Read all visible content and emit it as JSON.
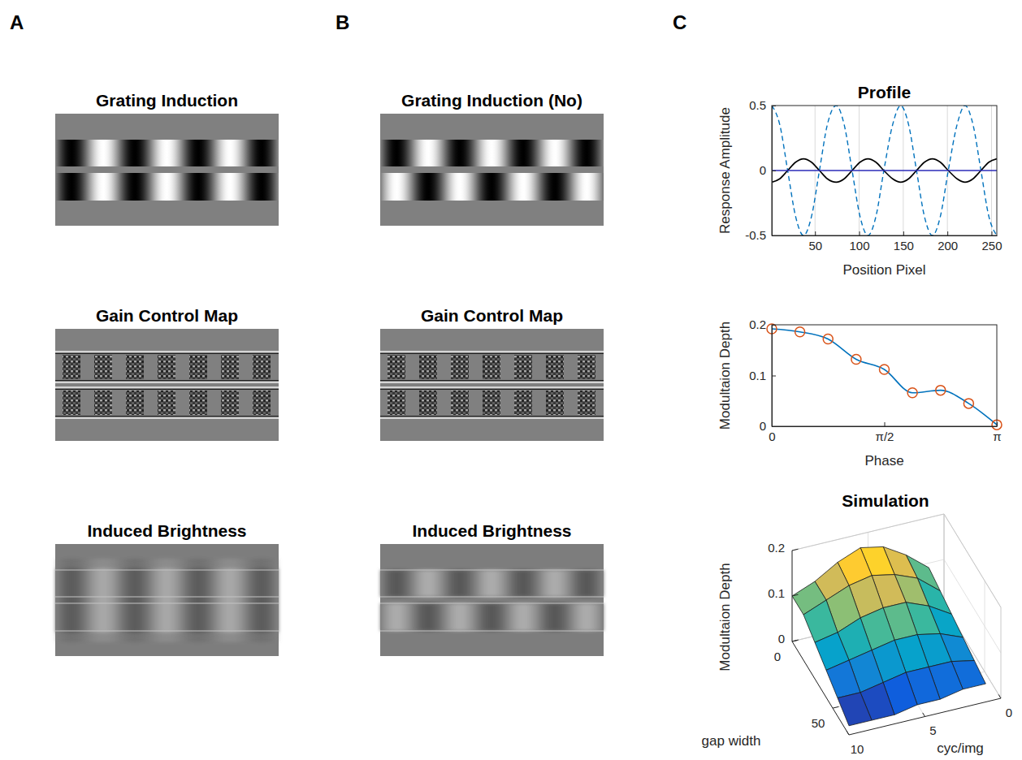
{
  "panels": [
    {
      "label": "A",
      "images": [
        "Grating Induction",
        "Gain Control Map",
        "Induced Brightness"
      ]
    },
    {
      "label": "B",
      "images": [
        "Grating Induction (No)",
        "Gain Control Map",
        "Induced Brightness"
      ]
    },
    {
      "label": "C"
    }
  ],
  "chart_data": [
    {
      "type": "line",
      "title": "Profile",
      "xlabel": "Position Pixel",
      "ylabel": "Response Amplitude",
      "x": [
        1,
        10,
        19,
        28,
        37,
        46,
        55,
        64,
        74,
        83,
        92,
        101,
        110,
        119,
        128,
        138,
        147,
        156,
        165,
        174,
        183,
        192,
        201,
        211,
        220,
        229,
        238,
        247,
        256
      ],
      "series": [
        {
          "color": "#0072bd",
          "line_style": "dashed",
          "values": [
            0.5,
            0.354,
            0,
            -0.354,
            -0.5,
            -0.354,
            0,
            0.354,
            0.5,
            0.354,
            0,
            -0.354,
            -0.5,
            -0.354,
            0,
            0.354,
            0.5,
            0.354,
            0,
            -0.354,
            -0.5,
            -0.354,
            0,
            0.354,
            0.5,
            0.354,
            0,
            -0.354,
            -0.5
          ]
        },
        {
          "color": "#000000",
          "line_style": "solid",
          "values": [
            -0.09,
            -0.064,
            0,
            0.064,
            0.09,
            0.064,
            0,
            -0.064,
            -0.09,
            -0.064,
            0,
            0.064,
            0.09,
            0.064,
            0,
            -0.064,
            -0.09,
            -0.064,
            0,
            0.064,
            0.09,
            0.064,
            0,
            -0.064,
            -0.09,
            -0.064,
            0,
            0.064,
            0.09
          ]
        },
        {
          "color": "#2b2bb8",
          "line_style": "solid",
          "values": [
            0,
            0,
            0,
            0,
            0,
            0,
            0,
            0,
            0,
            0,
            0,
            0,
            0,
            0,
            0,
            0,
            0,
            0,
            0,
            0,
            0,
            0,
            0,
            0,
            0,
            0,
            0,
            0,
            0
          ]
        }
      ],
      "xlim": [
        1,
        256
      ],
      "ylim": [
        -0.5,
        0.5
      ],
      "xticks": [
        50,
        100,
        150,
        200,
        250
      ],
      "yticks": [
        -0.5,
        0,
        0.5
      ],
      "grid": "x"
    },
    {
      "type": "line",
      "xlabel": "Phase",
      "ylabel": "Modultaion Depth",
      "x": [
        0,
        0.3927,
        0.7854,
        1.1781,
        1.5708,
        1.9635,
        2.3562,
        2.7489,
        3.1416
      ],
      "series": [
        {
          "color": "#0072bd",
          "marker": "circle",
          "line_style": "solid",
          "values": [
            0.192,
            0.186,
            0.172,
            0.132,
            0.112,
            0.066,
            0.071,
            0.045,
            0.003
          ]
        }
      ],
      "xlim": [
        0,
        3.1416
      ],
      "ylim": [
        0,
        0.2
      ],
      "xticks": [
        0,
        {
          "value": 1.5708,
          "label": "π/2"
        },
        {
          "value": 3.1416,
          "label": "π"
        }
      ],
      "yticks": [
        0,
        0.1,
        0.2
      ]
    },
    {
      "type": "surface",
      "title": "Simulation",
      "xlabel": "gap width",
      "ylabel": "cyc/img",
      "zlabel": "Modultaion Depth",
      "x": [
        0,
        14,
        28,
        42,
        56,
        70
      ],
      "y": [
        1,
        2.5,
        4,
        5.5,
        7,
        8.5,
        10
      ],
      "z": [
        [
          0.09,
          0.13,
          0.16,
          0.17,
          0.15,
          0.12,
          0.1
        ],
        [
          0.08,
          0.12,
          0.14,
          0.15,
          0.14,
          0.12,
          0.1
        ],
        [
          0.07,
          0.1,
          0.12,
          0.12,
          0.11,
          0.09,
          0.08
        ],
        [
          0.06,
          0.08,
          0.09,
          0.09,
          0.08,
          0.07,
          0.06
        ],
        [
          0.05,
          0.06,
          0.06,
          0.06,
          0.05,
          0.04,
          0.04
        ],
        [
          0.04,
          0.04,
          0.03,
          0.03,
          0.02,
          0.02,
          0.02
        ]
      ],
      "xlim": [
        0,
        70
      ],
      "ylim": [
        0,
        10
      ],
      "zlim": [
        0,
        0.2
      ],
      "xticks": [
        0,
        50
      ],
      "yticks": [
        0,
        5,
        10
      ],
      "zticks": [
        0,
        0.1,
        0.2
      ],
      "grid": true
    }
  ]
}
